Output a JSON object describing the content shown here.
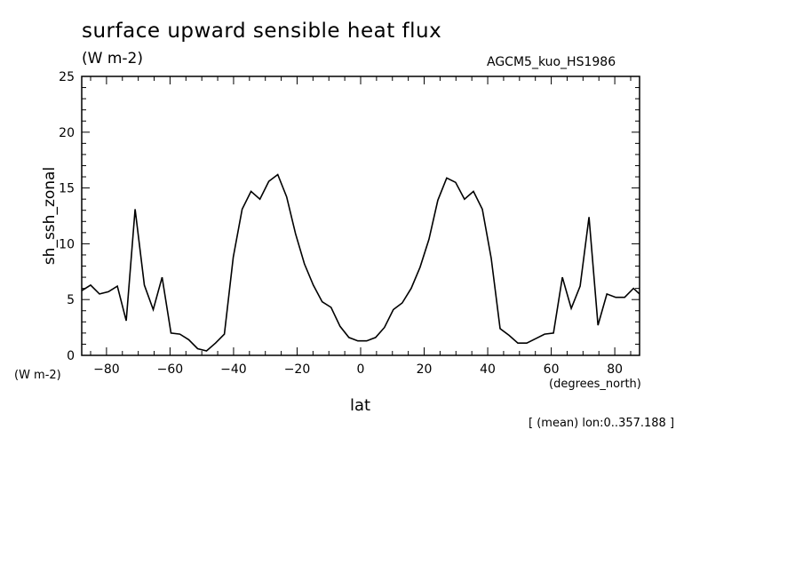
{
  "chart_data": {
    "type": "line",
    "title": "surface upward sensible heat flux",
    "units": "(W m-2)",
    "experiment": "AGCM5_kuo_HS1986",
    "ylabel": "sh_ssh_zonal",
    "xlabel": "lat",
    "y_unit_label": "(W m-2)",
    "x_unit_label": "(degrees_north)",
    "note": "[ (mean) lon:0..357.188 ]",
    "xlim": [
      -87.8,
      87.8
    ],
    "ylim": [
      0,
      25
    ],
    "x_ticks": [
      -80,
      -60,
      -40,
      -20,
      0,
      20,
      40,
      60,
      80
    ],
    "x_tick_labels": [
      "−80",
      "−60",
      "−40",
      "−20",
      "0",
      "20",
      "40",
      "60",
      "80"
    ],
    "y_ticks": [
      0,
      5,
      10,
      15,
      20,
      25
    ],
    "y_tick_labels": [
      "0",
      "5",
      "10",
      "15",
      "20",
      "25"
    ],
    "grid": false,
    "series": [
      {
        "x": [
          -87.8,
          -85.0,
          -82.2,
          -79.4,
          -76.6,
          -73.8,
          -71.0,
          -68.1,
          -65.3,
          -62.5,
          -59.7,
          -56.9,
          -54.1,
          -51.3,
          -48.5,
          -45.7,
          -42.9,
          -40.1,
          -37.3,
          -34.5,
          -31.7,
          -28.9,
          -26.1,
          -23.3,
          -20.5,
          -17.7,
          -14.9,
          -12.1,
          -9.3,
          -6.5,
          -3.7,
          -0.9,
          1.9,
          4.7,
          7.5,
          10.3,
          13.1,
          15.9,
          18.7,
          21.5,
          24.3,
          27.1,
          29.9,
          32.7,
          35.5,
          38.3,
          41.1,
          43.9,
          46.7,
          49.5,
          52.3,
          55.1,
          57.9,
          60.7,
          63.5,
          66.3,
          69.1,
          71.9,
          74.7,
          77.5,
          80.3,
          83.1,
          85.9,
          87.8
        ],
        "values": [
          5.8,
          6.3,
          5.5,
          5.7,
          6.2,
          3.1,
          13.1,
          6.3,
          4.1,
          7.0,
          2.0,
          1.9,
          1.4,
          0.6,
          0.4,
          1.1,
          1.9,
          8.8,
          13.1,
          14.7,
          14.0,
          15.6,
          16.2,
          14.2,
          10.9,
          8.2,
          6.3,
          4.8,
          4.3,
          2.6,
          1.6,
          1.3,
          1.3,
          1.6,
          2.5,
          4.1,
          4.7,
          6.0,
          7.9,
          10.4,
          13.9,
          15.9,
          15.5,
          14.0,
          14.7,
          13.1,
          8.7,
          2.4,
          1.8,
          1.1,
          1.1,
          1.5,
          1.9,
          2.0,
          7.0,
          4.2,
          6.2,
          12.4,
          2.7,
          5.5,
          5.2,
          5.2,
          6.0,
          5.5
        ]
      }
    ]
  }
}
